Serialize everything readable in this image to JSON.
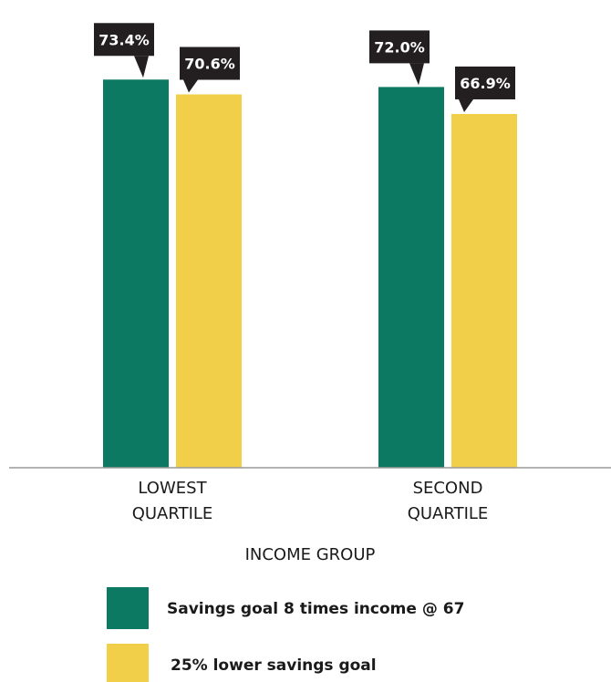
{
  "chart_data": {
    "type": "bar",
    "categories": [
      "LOWEST QUARTILE",
      "SECOND QUARTILE"
    ],
    "category_lines": [
      [
        "LOWEST",
        "QUARTILE"
      ],
      [
        "SECOND",
        "QUARTILE"
      ]
    ],
    "series": [
      {
        "name": "Savings goal 8 times income @ 67",
        "values": [
          73.4,
          72.0
        ],
        "labels": [
          "73.4%",
          "72.0%"
        ],
        "color": "#0c7a62"
      },
      {
        "name": "25% lower savings goal",
        "values": [
          70.6,
          66.9
        ],
        "labels": [
          "70.6%",
          "66.9%"
        ],
        "color": "#f2cf48"
      }
    ],
    "xlabel": "INCOME GROUP",
    "ylabel": "",
    "ylim": [
      0,
      100
    ],
    "legend_position": "bottom",
    "grid": false,
    "label_box_color": "#231f20",
    "axis_line_color": "#999999"
  }
}
